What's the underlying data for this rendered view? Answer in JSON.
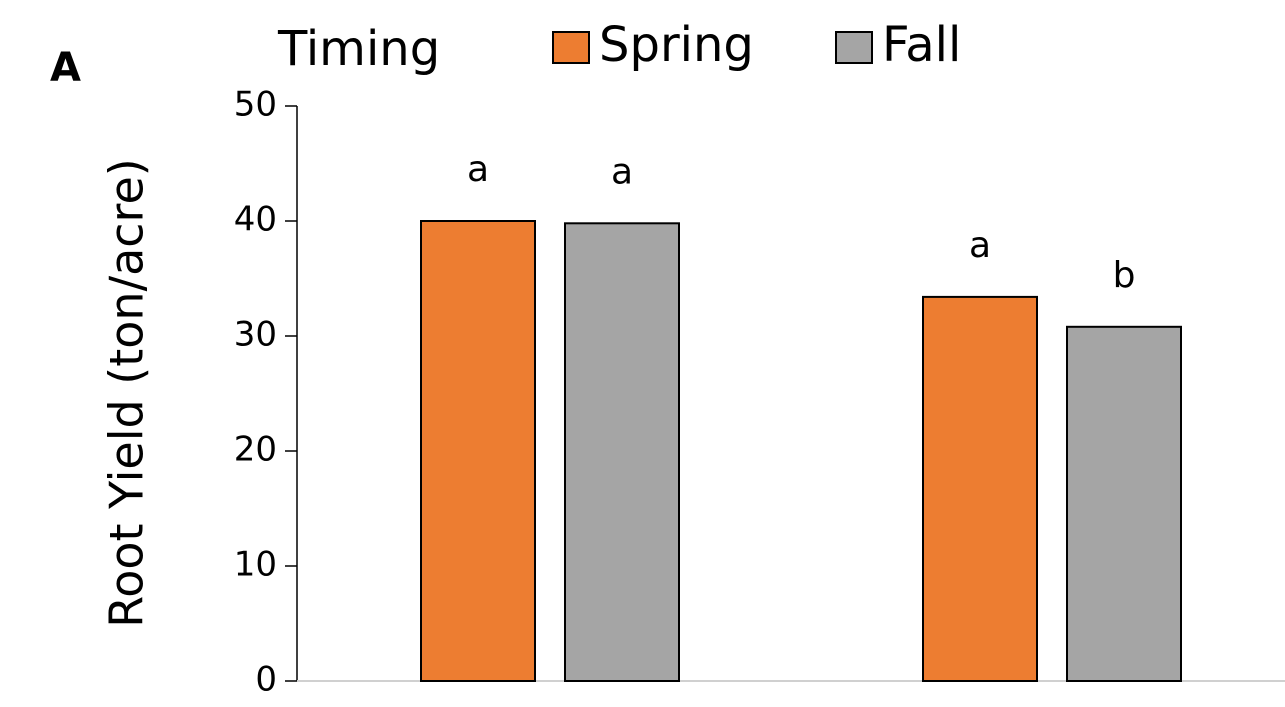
{
  "chart_data": {
    "type": "bar",
    "panel_label": "A",
    "legend_title": "Timing",
    "ylabel": "Root Yield (ton/acre)",
    "categories": [
      null,
      null
    ],
    "series": [
      {
        "name": "Spring",
        "color": "#ed7d31",
        "values": [
          40,
          33.4
        ],
        "significance": [
          "a",
          "a"
        ]
      },
      {
        "name": "Fall",
        "color": "#a5a5a5",
        "values": [
          39.8,
          30.8
        ],
        "significance": [
          "a",
          "b"
        ]
      }
    ],
    "ylim": [
      0,
      50
    ],
    "yticks": [
      0,
      10,
      20,
      30,
      40,
      50
    ],
    "grid": false,
    "legend": "top"
  }
}
